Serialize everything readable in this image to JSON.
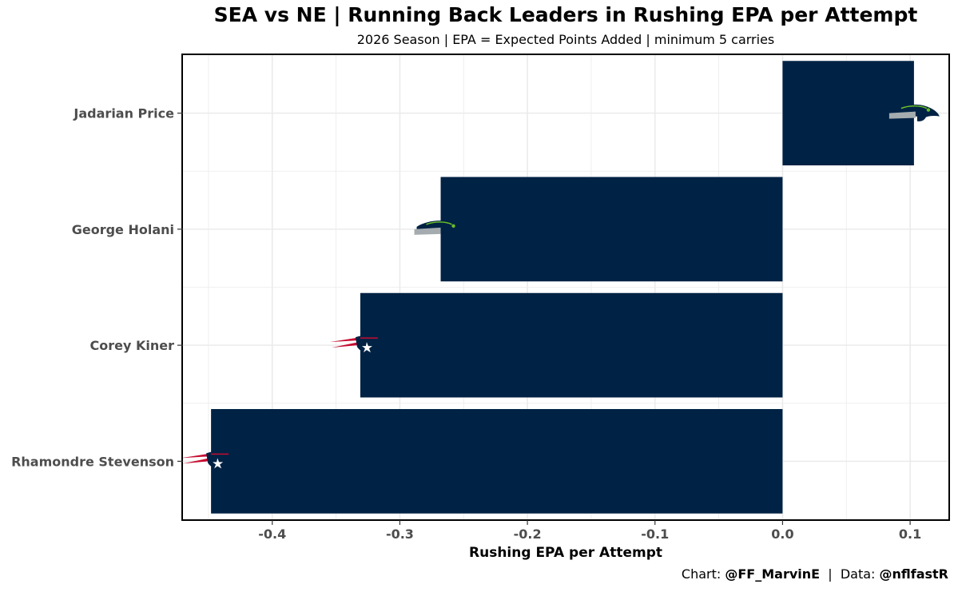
{
  "header": {
    "title": "SEA vs NE | Running Back Leaders in Rushing EPA per Attempt",
    "subtitle": "2026 Season | EPA = Expected Points Added | minimum 5 carries"
  },
  "caption": {
    "chart_prefix": "Chart: ",
    "chart_handle": "@FF_MarvinE",
    "sep": "  |  Data: ",
    "data_handle": "@nflfastR"
  },
  "colors": {
    "bar": "#002244",
    "sea_navy": "#002244",
    "sea_green": "#69BE28",
    "sea_grey": "#A5ACAF",
    "ne_navy": "#002244",
    "ne_red": "#C60C30",
    "grid": "#ebebeb"
  },
  "chart_data": {
    "type": "bar",
    "orientation": "horizontal",
    "xlabel": "Rushing EPA per Attempt",
    "xlim": [
      -0.47,
      0.13
    ],
    "xticks": [
      -0.4,
      -0.3,
      -0.2,
      -0.1,
      0.0,
      0.1
    ],
    "xtick_labels": [
      "-0.4",
      "-0.3",
      "-0.2",
      "-0.1",
      "0.0",
      "0.1"
    ],
    "grid": true,
    "categories": [
      "Jadarian Price",
      "George Holani",
      "Corey Kiner",
      "Rhamondre Stevenson"
    ],
    "values": [
      0.103,
      -0.268,
      -0.331,
      -0.448
    ],
    "teams": [
      "SEA",
      "SEA",
      "NE",
      "NE"
    ],
    "team_logo_icons": [
      "seahawks-logo-icon",
      "seahawks-logo-icon",
      "patriots-logo-icon",
      "patriots-logo-icon"
    ]
  }
}
